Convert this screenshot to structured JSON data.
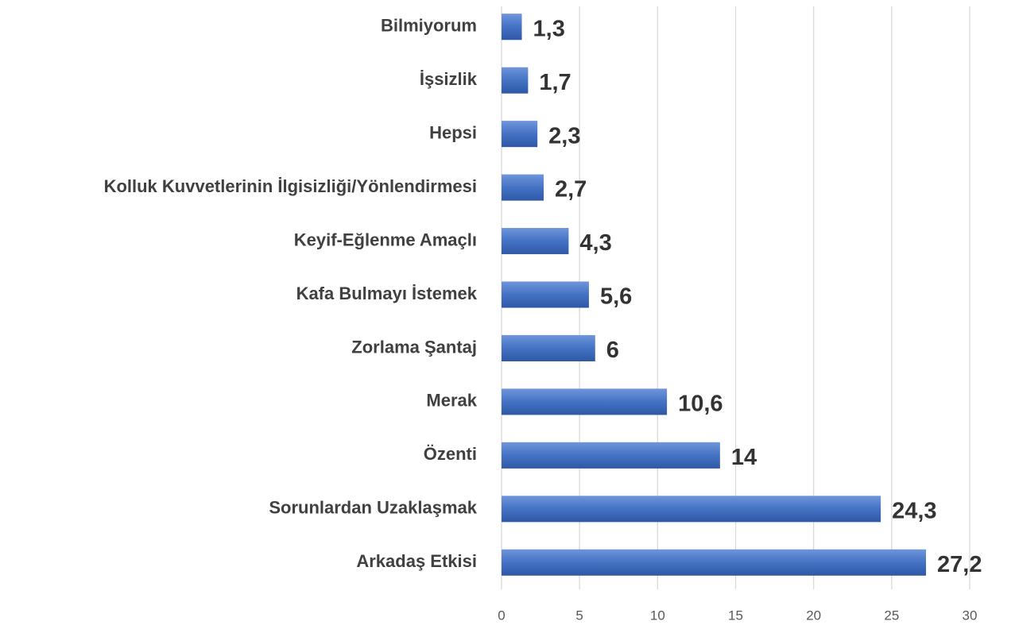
{
  "chart_data": {
    "type": "bar",
    "orientation": "horizontal",
    "categories": [
      "Bilmiyorum",
      "İşsizlik",
      "Hepsi",
      "Kolluk Kuvvetlerinin İlgisizliği/Yönlendirmesi",
      "Keyif-Eğlenme Amaçlı",
      "Kafa Bulmayı İstemek",
      "Zorlama Şantaj",
      "Merak",
      "Özenti",
      "Sorunlardan Uzaklaşmak",
      "Arkadaş Etkisi"
    ],
    "values": [
      1.3,
      1.7,
      2.3,
      2.7,
      4.3,
      5.6,
      6,
      10.6,
      14,
      24.3,
      27.2
    ],
    "value_labels": [
      "1,3",
      "1,7",
      "2,3",
      "2,7",
      "4,3",
      "5,6",
      "6",
      "10,6",
      "14",
      "24,3",
      "27,2"
    ],
    "color": "#4472c4",
    "xlim": [
      0,
      30
    ],
    "xticks": [
      0,
      5,
      10,
      15,
      20,
      25,
      30
    ],
    "grid": true
  }
}
